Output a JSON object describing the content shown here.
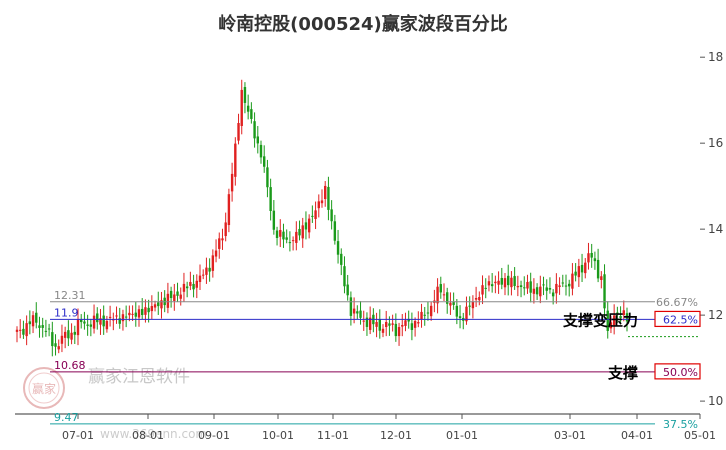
{
  "title": "岭南控股(000524)赢家波段百分比",
  "chart_data": {
    "type": "candlestick",
    "y_axis": {
      "ticks": [
        10,
        12,
        14,
        16,
        18
      ],
      "range": [
        9.7,
        18.4
      ],
      "side": "right"
    },
    "x_axis": {
      "ticks": [
        "07-01",
        "08-01",
        "09-01",
        "10-01",
        "11-01",
        "12-01",
        "01-01",
        "03-01",
        "04-01",
        "05-01"
      ]
    },
    "price_path": [
      [
        0,
        11.6
      ],
      [
        6,
        11.9
      ],
      [
        12,
        11.3
      ],
      [
        20,
        11.8
      ],
      [
        30,
        11.9
      ],
      [
        40,
        12.1
      ],
      [
        50,
        12.5
      ],
      [
        58,
        12.9
      ],
      [
        64,
        13.8
      ],
      [
        68,
        15.8
      ],
      [
        70,
        17.3
      ],
      [
        73,
        16.4
      ],
      [
        76,
        15.8
      ],
      [
        80,
        14.0
      ],
      [
        84,
        13.7
      ],
      [
        88,
        13.9
      ],
      [
        92,
        14.3
      ],
      [
        96,
        14.9
      ],
      [
        100,
        13.4
      ],
      [
        104,
        12.1
      ],
      [
        110,
        11.8
      ],
      [
        118,
        11.7
      ],
      [
        126,
        11.9
      ],
      [
        132,
        12.6
      ],
      [
        138,
        11.9
      ],
      [
        146,
        12.7
      ],
      [
        152,
        12.8
      ],
      [
        160,
        12.6
      ],
      [
        168,
        12.6
      ],
      [
        174,
        12.9
      ],
      [
        178,
        13.4
      ],
      [
        182,
        12.9
      ],
      [
        184,
        11.5
      ],
      [
        186,
        12.1
      ],
      [
        190,
        11.9
      ]
    ],
    "levels": [
      {
        "price": "12.31",
        "pct": "66.67%",
        "color": "#888888",
        "boxed": false
      },
      {
        "price": "11.9",
        "pct": "62.5%",
        "color": "#2b2bc8",
        "boxed": true
      },
      {
        "price": "10.68",
        "pct": "50.0%",
        "color": "#880055",
        "boxed": true
      },
      {
        "price": "9.47",
        "pct": "37.5%",
        "color": "#1aa0a0",
        "boxed": false
      }
    ],
    "annotations": [
      {
        "text": "支撑变压力",
        "level": "11.9"
      },
      {
        "text": "支撑",
        "level": "10.68"
      }
    ],
    "colors": {
      "up": "#e02020",
      "down": "#1a9a1a"
    }
  },
  "watermark": {
    "text": "赢家江恩软件",
    "url": "www.369enn.com",
    "seal": "赢家"
  }
}
